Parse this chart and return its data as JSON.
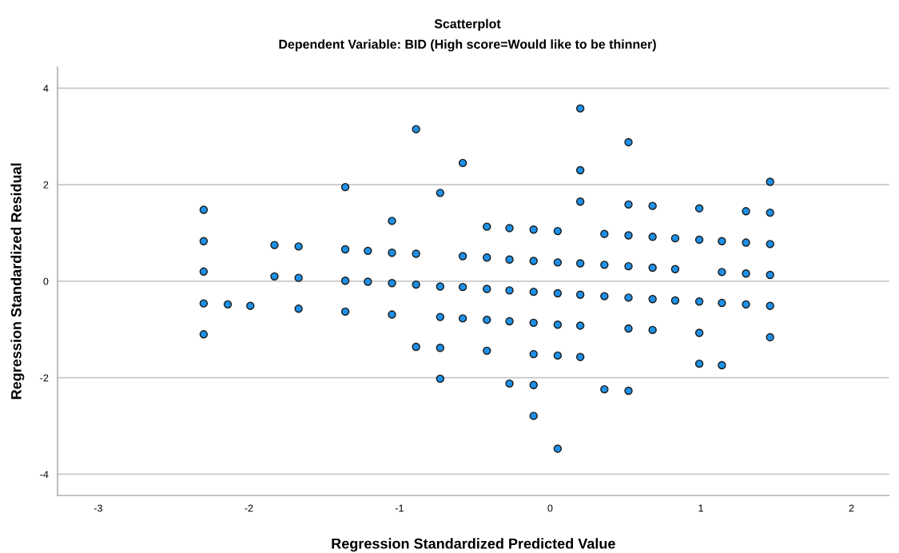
{
  "chart_data": {
    "type": "scatter",
    "title": "Scatterplot",
    "subtitle": "Dependent Variable: BID (High score=Would like to be thinner)",
    "xlabel": "Regression Standardized Predicted Value",
    "ylabel": "Regression Standardized Residual",
    "xlim": [
      -3.27,
      2.25
    ],
    "ylim": [
      -4.44,
      4.44
    ],
    "xticks": [
      -3,
      -2,
      -1,
      0,
      1,
      2
    ],
    "yticks": [
      -4,
      -2,
      0,
      2,
      4
    ],
    "grid": "y",
    "marker": "circle",
    "series": [
      {
        "color": "#1e90e6",
        "x": [
          -2.3,
          -2.3,
          -2.3,
          -2.3,
          -2.3,
          -2.14,
          -1.99,
          -1.83,
          -1.83,
          -1.67,
          -1.67,
          -1.67,
          -1.36,
          -1.36,
          -1.36,
          -1.36,
          -1.21,
          -1.21,
          -1.05,
          -1.05,
          -1.05,
          -1.05,
          -0.89,
          -0.89,
          -0.89,
          -0.89,
          -0.73,
          -0.73,
          -0.73,
          -0.73,
          -0.73,
          -0.58,
          -0.58,
          -0.58,
          -0.58,
          -0.42,
          -0.42,
          -0.42,
          -0.42,
          -0.42,
          -0.27,
          -0.27,
          -0.27,
          -0.27,
          -0.27,
          -0.11,
          -0.11,
          -0.11,
          -0.11,
          -0.11,
          -0.11,
          -0.11,
          0.05,
          0.05,
          0.05,
          0.05,
          0.05,
          0.05,
          0.2,
          0.2,
          0.2,
          0.2,
          0.2,
          0.2,
          0.2,
          0.36,
          0.36,
          0.36,
          0.36,
          0.52,
          0.52,
          0.52,
          0.52,
          0.52,
          0.52,
          0.52,
          0.68,
          0.68,
          0.68,
          0.68,
          0.68,
          0.83,
          0.83,
          0.83,
          0.99,
          0.99,
          0.99,
          0.99,
          0.99,
          1.14,
          1.14,
          1.14,
          1.14,
          1.3,
          1.3,
          1.3,
          1.3,
          1.46,
          1.46,
          1.46,
          1.46,
          1.46,
          1.46
        ],
        "values": [
          1.48,
          0.83,
          0.2,
          -0.46,
          -1.1,
          -0.48,
          -0.51,
          0.75,
          0.1,
          0.72,
          0.07,
          -0.57,
          1.95,
          0.66,
          0.01,
          -0.63,
          0.63,
          -0.01,
          1.25,
          0.59,
          -0.04,
          -0.69,
          3.15,
          0.57,
          -0.07,
          -1.36,
          1.83,
          -0.11,
          -0.74,
          -1.38,
          -2.02,
          2.45,
          0.52,
          -0.12,
          -0.77,
          1.13,
          0.49,
          -0.16,
          -0.8,
          -1.44,
          1.1,
          0.45,
          -0.19,
          -0.83,
          -2.12,
          1.07,
          0.42,
          -0.22,
          -0.86,
          -1.51,
          -2.15,
          -2.79,
          1.04,
          0.39,
          -0.25,
          -0.9,
          -1.54,
          -3.47,
          3.58,
          2.3,
          1.65,
          0.37,
          -0.28,
          -0.92,
          -1.57,
          0.98,
          0.34,
          -0.31,
          -2.24,
          2.88,
          1.59,
          0.95,
          0.31,
          -0.34,
          -0.98,
          -2.27,
          1.56,
          0.92,
          0.28,
          -0.37,
          -1.01,
          0.89,
          0.25,
          -0.4,
          1.51,
          0.86,
          -0.42,
          -1.07,
          -1.71,
          0.83,
          0.19,
          -0.45,
          -1.74,
          1.45,
          0.8,
          0.16,
          -0.48,
          2.06,
          1.42,
          0.77,
          0.13,
          -0.51,
          -1.16
        ]
      }
    ]
  }
}
